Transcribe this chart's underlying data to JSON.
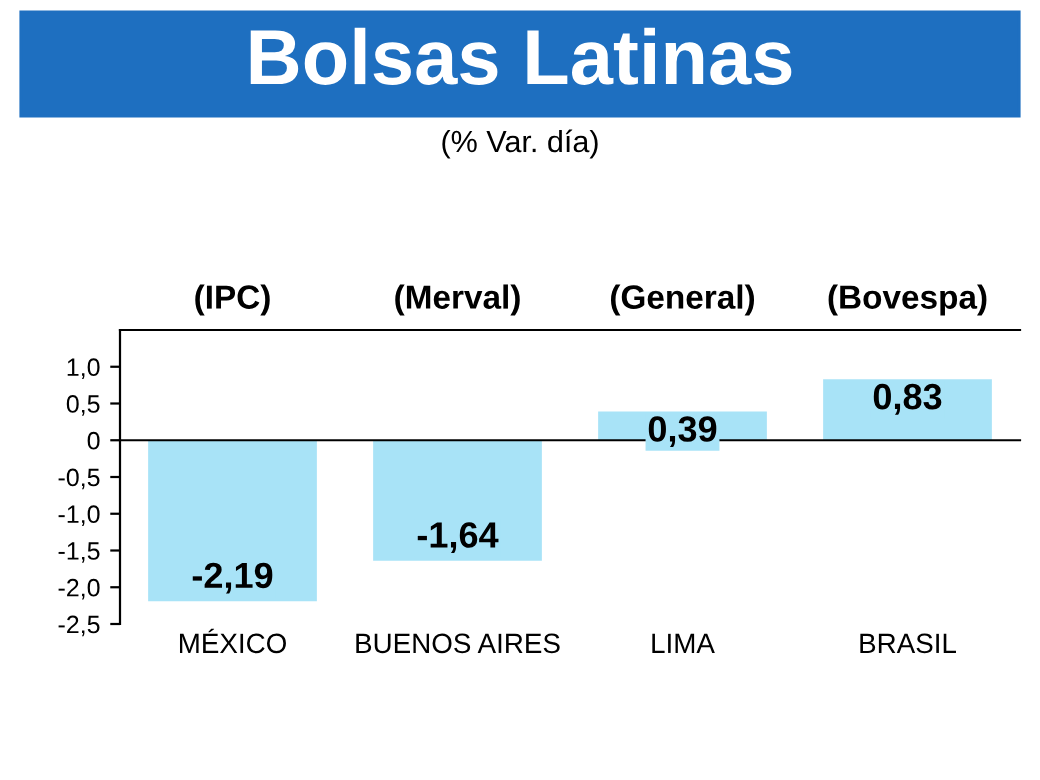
{
  "chart_data": {
    "type": "bar",
    "title": "Bolsas Latinas",
    "subtitle": "(% Var. día)",
    "annotations": [
      "(IPC)",
      "(Merval)",
      "(General)",
      "(Bovespa)"
    ],
    "categories": [
      "MÉXICO",
      "BUENOS AIRES",
      "LIMA",
      "BRASIL"
    ],
    "values": [
      -2.19,
      -1.64,
      0.39,
      0.83
    ],
    "value_labels": [
      "-2,19",
      "-1,64",
      "0,39",
      "0,83"
    ],
    "color": "#a8e3f7",
    "ylim": [
      -2.5,
      1.5
    ],
    "yticks": [
      {
        "value": -2.5,
        "label": "-2,5"
      },
      {
        "value": -2.0,
        "label": "-2,0"
      },
      {
        "value": -1.5,
        "label": "-1,5"
      },
      {
        "value": -1.0,
        "label": "-1,0"
      },
      {
        "value": -0.5,
        "label": "-0,5"
      },
      0,
      {
        "value": 0.5,
        "label": "0,5"
      },
      {
        "value": 1.0,
        "label": "1,0"
      }
    ]
  }
}
